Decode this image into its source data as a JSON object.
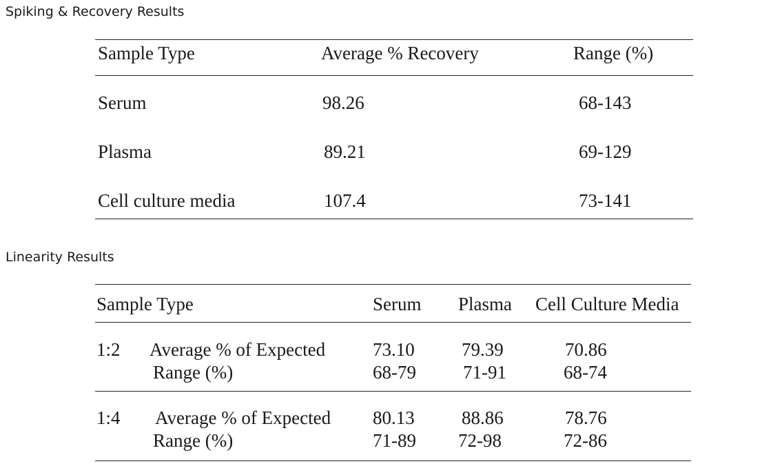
{
  "recovery": {
    "title": "Spiking & Recovery Results",
    "headers": [
      "Sample Type",
      "Average % Recovery",
      "Range (%)"
    ],
    "rows": [
      {
        "sample": "Serum",
        "average": "98.26",
        "range": "68-143"
      },
      {
        "sample": "Plasma",
        "average": "89.21",
        "range": "69-129"
      },
      {
        "sample": "Cell culture media",
        "average": "107.4",
        "range": "73-141"
      }
    ]
  },
  "linearity": {
    "title": "Linearity Results",
    "headers": [
      "Sample Type",
      "Serum",
      "Plasma",
      "Cell Culture Media"
    ],
    "groups": [
      {
        "dilution": "1:2",
        "avg_label": "Average % of Expected",
        "range_label": "Range (%)",
        "avg": {
          "serum": "73.10",
          "plasma": "79.39",
          "media": "70.86"
        },
        "range": {
          "serum": "68-79",
          "plasma": "71-91",
          "media": "68-74"
        }
      },
      {
        "dilution": "1:4",
        "avg_label": "Average % of Expected",
        "range_label": "Range (%)",
        "avg": {
          "serum": "80.13",
          "plasma": "88.86",
          "media": "78.76"
        },
        "range": {
          "serum": "71-89",
          "plasma": "72-98",
          "media": "72-86"
        }
      }
    ]
  }
}
